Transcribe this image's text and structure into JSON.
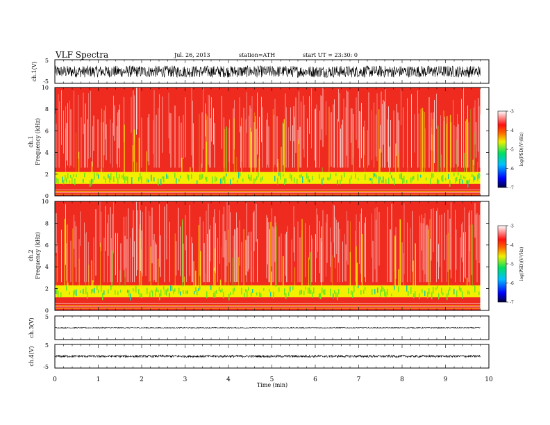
{
  "header": {
    "title": "VLF  Spectra",
    "date": "Jul.  26, 2013",
    "station": "station=ATH",
    "start": "start  UT  =   23:30: 0"
  },
  "colors": {
    "spec_bg": "#ef2a1e",
    "spec_white": "#ffffff",
    "spec_yellow": "#f2f000",
    "spec_green": "#6ee31c",
    "spec_cyan": "#16c9a6",
    "axis": "#000000"
  },
  "chart_data": [
    {
      "type": "line",
      "panel": "ch1-waveform",
      "ylabel": "ch.1(V)",
      "ylim": [
        -5,
        5
      ],
      "yticks": [
        "5",
        "-5"
      ],
      "description_values": {
        "center": 0,
        "amplitude_approx": 2.5
      }
    },
    {
      "type": "heatmap",
      "panel": "ch1-spectrogram",
      "ylabel": [
        "ch.1",
        "Frequency  (kHz)"
      ],
      "ylim": [
        0,
        10
      ],
      "yticks": [
        "0",
        "2",
        "4",
        "6",
        "8",
        "10"
      ],
      "bands_khz": [
        {
          "low": 1.1,
          "high": 2.2
        },
        {
          "low": 0.1,
          "high": 0.6
        }
      ],
      "colorbar": {
        "label": "log(PSD)(V²/Hz)",
        "range": [
          -7,
          -3
        ],
        "ticks": [
          "-3",
          "-4",
          "-5",
          "-6",
          "-7"
        ]
      }
    },
    {
      "type": "heatmap",
      "panel": "ch2-spectrogram",
      "ylabel": [
        "ch.2",
        "Frequency  (kHz)"
      ],
      "ylim": [
        0,
        10
      ],
      "yticks": [
        "0",
        "2",
        "4",
        "6",
        "8",
        "10"
      ],
      "bands_khz": [
        {
          "low": 1.2,
          "high": 2.3
        },
        {
          "low": 0.1,
          "high": 0.7
        }
      ],
      "colorbar": {
        "label": "log(PSD)(V²/Hz)",
        "range": [
          -7,
          -3
        ],
        "ticks": [
          "-3",
          "-4",
          "-5",
          "-6",
          "-7"
        ]
      }
    },
    {
      "type": "line",
      "panel": "ch3-waveform",
      "ylabel": "ch.3(V)",
      "ylim": [
        -5,
        5
      ],
      "yticks": [
        "5",
        "-5"
      ],
      "description_values": {
        "center": 0,
        "amplitude_approx": 0.2
      }
    },
    {
      "type": "line",
      "panel": "ch4-waveform",
      "ylabel": "ch.4(V)",
      "ylim": [
        -5,
        5
      ],
      "yticks": [
        "5",
        "-5"
      ],
      "description_values": {
        "center": 0,
        "amplitude_approx": 0.5
      }
    }
  ],
  "x_axis": {
    "label": "Time  (min)",
    "range": [
      0,
      10
    ],
    "ticks": [
      "0",
      "1",
      "2",
      "3",
      "4",
      "5",
      "6",
      "7",
      "8",
      "9",
      "10"
    ],
    "data_end": 9.8
  }
}
